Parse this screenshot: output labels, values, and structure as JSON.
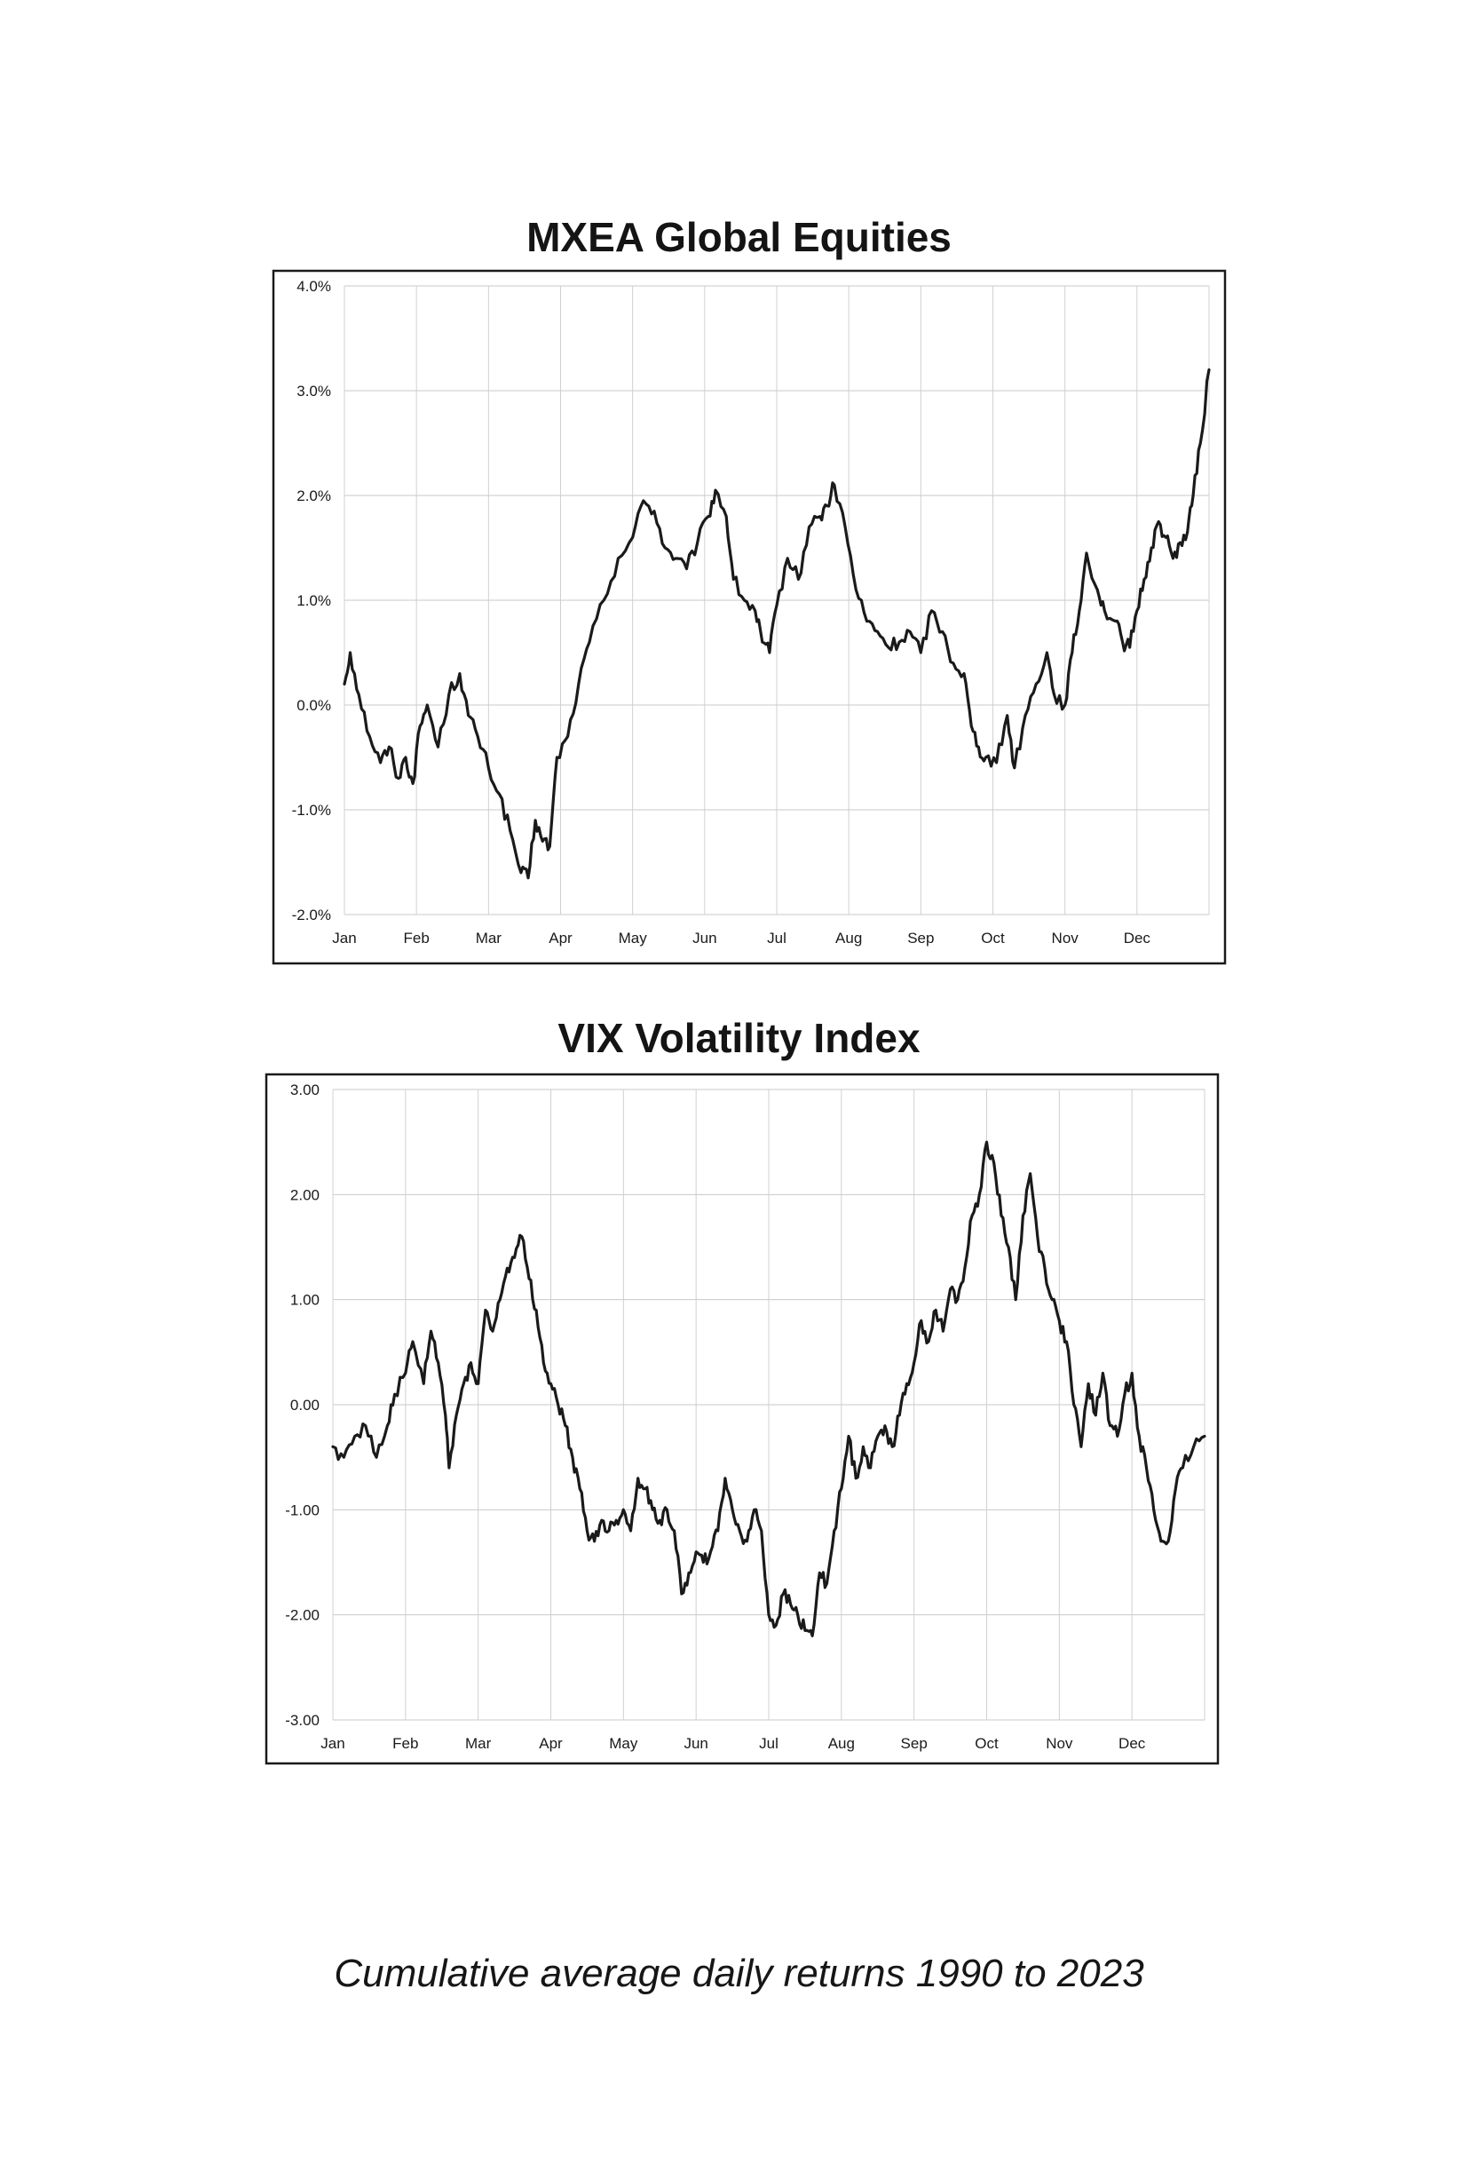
{
  "caption": "Cumulative average daily returns 1990 to 2023",
  "charts": [
    {
      "id": "mxea",
      "type": "line",
      "title": "MXEA Global Equities",
      "months": [
        "Jan",
        "Feb",
        "Mar",
        "Apr",
        "May",
        "Jun",
        "Jul",
        "Aug",
        "Sep",
        "Oct",
        "Nov",
        "Dec"
      ],
      "y_ticks": [
        {
          "value": 4.0,
          "label": "4.0%"
        },
        {
          "value": 3.0,
          "label": "3.0%"
        },
        {
          "value": 2.0,
          "label": "2.0%"
        },
        {
          "value": 1.0,
          "label": "1.0%"
        },
        {
          "value": 0.0,
          "label": "0.0%"
        },
        {
          "value": -1.0,
          "label": "-1.0%"
        },
        {
          "value": -2.0,
          "label": "-2.0%"
        }
      ],
      "ylim": [
        -2.0,
        4.0
      ],
      "xlim": [
        0,
        12
      ],
      "grid": true,
      "line_color": "#1a1a1a",
      "anchors": [
        [
          0.0,
          0.2
        ],
        [
          0.08,
          0.5
        ],
        [
          0.2,
          0.1
        ],
        [
          0.35,
          -0.3
        ],
        [
          0.5,
          -0.55
        ],
        [
          0.62,
          -0.4
        ],
        [
          0.75,
          -0.7
        ],
        [
          0.85,
          -0.5
        ],
        [
          0.95,
          -0.75
        ],
        [
          1.05,
          -0.2
        ],
        [
          1.15,
          0.0
        ],
        [
          1.3,
          -0.4
        ],
        [
          1.45,
          0.1
        ],
        [
          1.6,
          0.3
        ],
        [
          1.72,
          -0.1
        ],
        [
          1.85,
          -0.3
        ],
        [
          2.0,
          -0.6
        ],
        [
          2.15,
          -0.85
        ],
        [
          2.3,
          -1.2
        ],
        [
          2.45,
          -1.6
        ],
        [
          2.55,
          -1.65
        ],
        [
          2.65,
          -1.1
        ],
        [
          2.75,
          -1.3
        ],
        [
          2.85,
          -1.35
        ],
        [
          2.95,
          -0.5
        ],
        [
          3.1,
          -0.3
        ],
        [
          3.25,
          0.2
        ],
        [
          3.4,
          0.6
        ],
        [
          3.6,
          1.0
        ],
        [
          3.8,
          1.4
        ],
        [
          4.0,
          1.6
        ],
        [
          4.15,
          1.95
        ],
        [
          4.3,
          1.85
        ],
        [
          4.45,
          1.5
        ],
        [
          4.6,
          1.4
        ],
        [
          4.75,
          1.3
        ],
        [
          4.9,
          1.55
        ],
        [
          5.05,
          1.8
        ],
        [
          5.15,
          2.05
        ],
        [
          5.3,
          1.8
        ],
        [
          5.4,
          1.2
        ],
        [
          5.55,
          1.0
        ],
        [
          5.7,
          0.9
        ],
        [
          5.8,
          0.6
        ],
        [
          5.9,
          0.5
        ],
        [
          6.0,
          0.95
        ],
        [
          6.15,
          1.4
        ],
        [
          6.3,
          1.2
        ],
        [
          6.45,
          1.7
        ],
        [
          6.6,
          1.8
        ],
        [
          6.7,
          1.9
        ],
        [
          6.8,
          2.1
        ],
        [
          6.95,
          1.7
        ],
        [
          7.1,
          1.1
        ],
        [
          7.25,
          0.8
        ],
        [
          7.4,
          0.7
        ],
        [
          7.55,
          0.55
        ],
        [
          7.7,
          0.6
        ],
        [
          7.85,
          0.7
        ],
        [
          8.0,
          0.5
        ],
        [
          8.15,
          0.9
        ],
        [
          8.3,
          0.7
        ],
        [
          8.45,
          0.4
        ],
        [
          8.6,
          0.3
        ],
        [
          8.7,
          -0.2
        ],
        [
          8.8,
          -0.4
        ],
        [
          8.9,
          -0.5
        ],
        [
          9.05,
          -0.55
        ],
        [
          9.2,
          -0.1
        ],
        [
          9.3,
          -0.6
        ],
        [
          9.45,
          -0.1
        ],
        [
          9.6,
          0.2
        ],
        [
          9.75,
          0.5
        ],
        [
          9.85,
          0.1
        ],
        [
          10.0,
          0.0
        ],
        [
          10.1,
          0.5
        ],
        [
          10.2,
          0.9
        ],
        [
          10.3,
          1.45
        ],
        [
          10.45,
          1.1
        ],
        [
          10.55,
          0.9
        ],
        [
          10.7,
          0.8
        ],
        [
          10.8,
          0.6
        ],
        [
          10.9,
          0.55
        ],
        [
          11.0,
          0.9
        ],
        [
          11.1,
          1.2
        ],
        [
          11.2,
          1.5
        ],
        [
          11.3,
          1.75
        ],
        [
          11.4,
          1.6
        ],
        [
          11.5,
          1.4
        ],
        [
          11.6,
          1.55
        ],
        [
          11.7,
          1.65
        ],
        [
          11.78,
          2.0
        ],
        [
          11.88,
          2.5
        ],
        [
          12.0,
          3.2
        ]
      ]
    },
    {
      "id": "vix",
      "type": "line",
      "title": "VIX Volatility Index",
      "months": [
        "Jan",
        "Feb",
        "Mar",
        "Apr",
        "May",
        "Jun",
        "Jul",
        "Aug",
        "Sep",
        "Oct",
        "Nov",
        "Dec"
      ],
      "y_ticks": [
        {
          "value": 3.0,
          "label": "3.00"
        },
        {
          "value": 2.0,
          "label": "2.00"
        },
        {
          "value": 1.0,
          "label": "1.00"
        },
        {
          "value": 0.0,
          "label": "0.00"
        },
        {
          "value": -1.0,
          "label": "-1.00"
        },
        {
          "value": -2.0,
          "label": "-2.00"
        },
        {
          "value": -3.0,
          "label": "-3.00"
        }
      ],
      "ylim": [
        -3.0,
        3.0
      ],
      "xlim": [
        0,
        12
      ],
      "grid": true,
      "line_color": "#1a1a1a",
      "anchors": [
        [
          0.0,
          -0.4
        ],
        [
          0.15,
          -0.5
        ],
        [
          0.3,
          -0.3
        ],
        [
          0.45,
          -0.2
        ],
        [
          0.6,
          -0.5
        ],
        [
          0.75,
          -0.2
        ],
        [
          0.85,
          0.1
        ],
        [
          1.0,
          0.3
        ],
        [
          1.1,
          0.6
        ],
        [
          1.25,
          0.2
        ],
        [
          1.35,
          0.7
        ],
        [
          1.45,
          0.4
        ],
        [
          1.55,
          -0.1
        ],
        [
          1.6,
          -0.6
        ],
        [
          1.7,
          -0.1
        ],
        [
          1.8,
          0.2
        ],
        [
          1.9,
          0.4
        ],
        [
          2.0,
          0.2
        ],
        [
          2.1,
          0.9
        ],
        [
          2.2,
          0.7
        ],
        [
          2.3,
          1.0
        ],
        [
          2.4,
          1.3
        ],
        [
          2.5,
          1.4
        ],
        [
          2.6,
          1.6
        ],
        [
          2.7,
          1.2
        ],
        [
          2.8,
          0.9
        ],
        [
          2.9,
          0.4
        ],
        [
          3.0,
          0.2
        ],
        [
          3.1,
          0.0
        ],
        [
          3.2,
          -0.2
        ],
        [
          3.3,
          -0.5
        ],
        [
          3.4,
          -0.8
        ],
        [
          3.5,
          -1.2
        ],
        [
          3.6,
          -1.3
        ],
        [
          3.7,
          -1.1
        ],
        [
          3.8,
          -1.2
        ],
        [
          3.9,
          -1.1
        ],
        [
          4.0,
          -1.0
        ],
        [
          4.1,
          -1.2
        ],
        [
          4.2,
          -0.7
        ],
        [
          4.3,
          -0.8
        ],
        [
          4.4,
          -1.0
        ],
        [
          4.5,
          -1.1
        ],
        [
          4.6,
          -1.0
        ],
        [
          4.7,
          -1.2
        ],
        [
          4.8,
          -1.8
        ],
        [
          4.9,
          -1.6
        ],
        [
          5.0,
          -1.4
        ],
        [
          5.1,
          -1.5
        ],
        [
          5.2,
          -1.4
        ],
        [
          5.3,
          -1.2
        ],
        [
          5.4,
          -0.7
        ],
        [
          5.5,
          -1.0
        ],
        [
          5.6,
          -1.2
        ],
        [
          5.7,
          -1.3
        ],
        [
          5.8,
          -1.0
        ],
        [
          5.9,
          -1.2
        ],
        [
          6.0,
          -2.0
        ],
        [
          6.1,
          -2.1
        ],
        [
          6.2,
          -1.8
        ],
        [
          6.3,
          -1.9
        ],
        [
          6.4,
          -2.0
        ],
        [
          6.5,
          -2.15
        ],
        [
          6.6,
          -2.2
        ],
        [
          6.7,
          -1.6
        ],
        [
          6.8,
          -1.7
        ],
        [
          6.9,
          -1.2
        ],
        [
          7.0,
          -0.8
        ],
        [
          7.1,
          -0.3
        ],
        [
          7.2,
          -0.7
        ],
        [
          7.3,
          -0.4
        ],
        [
          7.4,
          -0.6
        ],
        [
          7.5,
          -0.3
        ],
        [
          7.6,
          -0.2
        ],
        [
          7.7,
          -0.4
        ],
        [
          7.8,
          -0.1
        ],
        [
          7.9,
          0.2
        ],
        [
          8.0,
          0.4
        ],
        [
          8.1,
          0.8
        ],
        [
          8.2,
          0.6
        ],
        [
          8.3,
          0.9
        ],
        [
          8.4,
          0.7
        ],
        [
          8.5,
          1.1
        ],
        [
          8.6,
          1.0
        ],
        [
          8.7,
          1.3
        ],
        [
          8.8,
          1.8
        ],
        [
          8.9,
          2.0
        ],
        [
          9.0,
          2.5
        ],
        [
          9.1,
          2.3
        ],
        [
          9.2,
          1.8
        ],
        [
          9.3,
          1.5
        ],
        [
          9.4,
          1.0
        ],
        [
          9.5,
          1.8
        ],
        [
          9.6,
          2.2
        ],
        [
          9.7,
          1.6
        ],
        [
          9.8,
          1.3
        ],
        [
          9.9,
          1.0
        ],
        [
          10.0,
          0.8
        ],
        [
          10.1,
          0.6
        ],
        [
          10.2,
          0.0
        ],
        [
          10.3,
          -0.4
        ],
        [
          10.4,
          0.2
        ],
        [
          10.5,
          -0.1
        ],
        [
          10.6,
          0.3
        ],
        [
          10.7,
          -0.2
        ],
        [
          10.8,
          -0.3
        ],
        [
          10.9,
          0.1
        ],
        [
          11.0,
          0.3
        ],
        [
          11.1,
          -0.3
        ],
        [
          11.2,
          -0.6
        ],
        [
          11.3,
          -1.0
        ],
        [
          11.4,
          -1.3
        ],
        [
          11.5,
          -1.3
        ],
        [
          11.6,
          -0.8
        ],
        [
          11.7,
          -0.6
        ],
        [
          11.85,
          -0.4
        ],
        [
          12.0,
          -0.3
        ]
      ]
    }
  ]
}
